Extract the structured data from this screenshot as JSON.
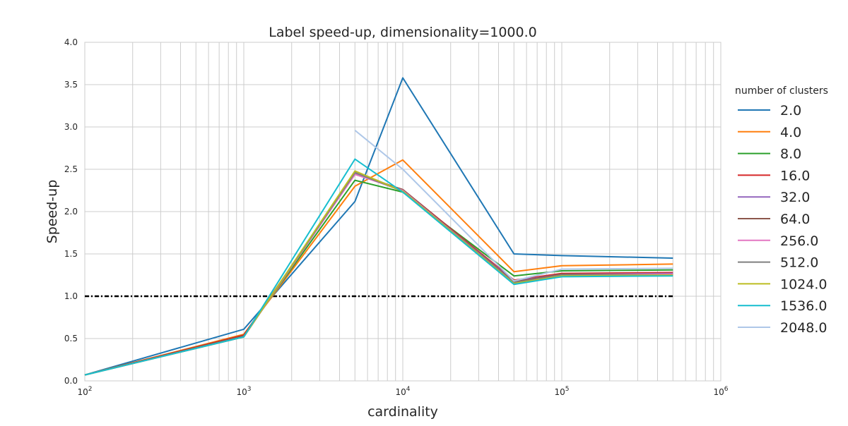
{
  "chart_data": {
    "type": "line",
    "title": "Label speed-up, dimensionality=1000.0",
    "xlabel": "cardinality",
    "ylabel": "Speed-up",
    "xscale": "log",
    "xlim": [
      100,
      1000000
    ],
    "ylim": [
      0,
      4
    ],
    "grid": true,
    "x_ticks": [
      {
        "value": 100,
        "base": "10",
        "exp": "2"
      },
      {
        "value": 1000,
        "base": "10",
        "exp": "3"
      },
      {
        "value": 10000,
        "base": "10",
        "exp": "4"
      },
      {
        "value": 100000,
        "base": "10",
        "exp": "5"
      },
      {
        "value": 1000000,
        "base": "10",
        "exp": "6"
      }
    ],
    "y_ticks": [
      "0.0",
      "0.5",
      "1.0",
      "1.5",
      "2.0",
      "2.5",
      "3.0",
      "3.5",
      "4.0"
    ],
    "legend": {
      "title": "number of clusters",
      "placement": "right, outside plot"
    },
    "reference_line": {
      "y": 1.0,
      "x_range": [
        100,
        500000
      ],
      "style": "dash-dot",
      "color": "#000000"
    },
    "series": [
      {
        "name": "2.0",
        "color": "#1f77b4",
        "x": [
          100,
          1000,
          5000,
          10000,
          50000,
          100000,
          500000
        ],
        "y": [
          0.07,
          0.61,
          2.12,
          3.58,
          1.5,
          1.48,
          1.45
        ]
      },
      {
        "name": "4.0",
        "color": "#ff7f0e",
        "x": [
          100,
          1000,
          5000,
          10000,
          50000,
          100000,
          500000
        ],
        "y": [
          0.07,
          0.55,
          2.3,
          2.61,
          1.29,
          1.36,
          1.38
        ]
      },
      {
        "name": "8.0",
        "color": "#2ca02c",
        "x": [
          100,
          1000,
          5000,
          10000,
          50000,
          100000,
          500000
        ],
        "y": [
          0.07,
          0.54,
          2.37,
          2.23,
          1.24,
          1.3,
          1.31
        ]
      },
      {
        "name": "16.0",
        "color": "#d62728",
        "x": [
          100,
          1000,
          5000,
          10000,
          50000,
          100000,
          500000
        ],
        "y": [
          0.07,
          0.54,
          2.44,
          2.26,
          1.19,
          1.27,
          1.28
        ]
      },
      {
        "name": "32.0",
        "color": "#9467bd",
        "x": [
          100,
          1000,
          5000,
          10000,
          50000,
          100000,
          500000
        ],
        "y": [
          0.07,
          0.52,
          2.47,
          2.25,
          1.18,
          1.26,
          1.27
        ]
      },
      {
        "name": "64.0",
        "color": "#8c564b",
        "x": [
          100,
          1000,
          5000,
          10000,
          50000,
          100000,
          500000
        ],
        "y": [
          0.07,
          0.53,
          2.45,
          2.26,
          1.17,
          1.26,
          1.26
        ]
      },
      {
        "name": "256.0",
        "color": "#e377c2",
        "x": [
          100,
          1000,
          5000,
          10000,
          50000,
          100000,
          500000
        ],
        "y": [
          0.07,
          0.52,
          2.44,
          2.25,
          1.16,
          1.25,
          1.26
        ]
      },
      {
        "name": "512.0",
        "color": "#7f7f7f",
        "x": [
          100,
          1000,
          5000,
          10000,
          50000,
          100000,
          500000
        ],
        "y": [
          0.07,
          0.52,
          2.46,
          2.24,
          1.16,
          1.25,
          1.25
        ]
      },
      {
        "name": "1024.0",
        "color": "#bcbd22",
        "x": [
          100,
          1000,
          5000,
          10000,
          50000,
          100000,
          500000
        ],
        "y": [
          0.07,
          0.52,
          2.48,
          2.24,
          1.15,
          1.24,
          1.25
        ]
      },
      {
        "name": "1536.0",
        "color": "#17becf",
        "x": [
          100,
          1000,
          5000,
          10000,
          50000,
          100000,
          500000
        ],
        "y": [
          0.07,
          0.52,
          2.62,
          2.23,
          1.14,
          1.23,
          1.24
        ]
      },
      {
        "name": "2048.0",
        "color": "#aec7e8",
        "x": [
          5000,
          10000,
          50000,
          100000,
          500000
        ],
        "y": [
          2.96,
          2.5,
          1.18,
          1.32,
          1.33
        ]
      }
    ]
  }
}
